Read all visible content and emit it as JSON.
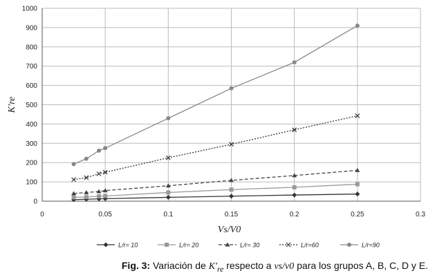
{
  "chart_data": {
    "type": "line",
    "xlabel": "Vs/V0",
    "ylabel": "K're",
    "xlim": [
      0,
      0.3
    ],
    "ylim": [
      0,
      1000
    ],
    "xticks": [
      "0",
      "0.05",
      "0.1",
      "0.15",
      "0.2",
      "0.25",
      "0.3"
    ],
    "yticks": [
      "0",
      "100",
      "200",
      "300",
      "400",
      "500",
      "600",
      "700",
      "800",
      "900",
      "1000"
    ],
    "grid": true,
    "legend_position": "bottom",
    "series": [
      {
        "name": "L/r= 10",
        "marker": "diamond",
        "color": "#333333",
        "dash": "solid",
        "x": [
          0.025,
          0.035,
          0.045,
          0.05,
          0.1,
          0.15,
          0.2,
          0.25
        ],
        "values": [
          8,
          10,
          12,
          13,
          20,
          26,
          32,
          37
        ]
      },
      {
        "name": "L/r= 20",
        "marker": "square",
        "color": "#999999",
        "dash": "solid",
        "x": [
          0.025,
          0.035,
          0.045,
          0.05,
          0.1,
          0.15,
          0.2,
          0.25
        ],
        "values": [
          20,
          22,
          25,
          27,
          45,
          60,
          72,
          88
        ]
      },
      {
        "name": "L/r= 30",
        "marker": "triangle",
        "color": "#444444",
        "dash": "dash",
        "x": [
          0.025,
          0.035,
          0.045,
          0.05,
          0.1,
          0.15,
          0.2,
          0.25
        ],
        "values": [
          40,
          45,
          50,
          55,
          80,
          108,
          133,
          160
        ]
      },
      {
        "name": "L/r=60",
        "marker": "x",
        "color": "#333333",
        "dash": "dot",
        "x": [
          0.025,
          0.035,
          0.045,
          0.05,
          0.1,
          0.15,
          0.2,
          0.25
        ],
        "values": [
          112,
          122,
          142,
          150,
          225,
          295,
          370,
          443
        ]
      },
      {
        "name": "L/r=90",
        "marker": "circle",
        "color": "#888888",
        "dash": "solid",
        "x": [
          0.025,
          0.035,
          0.045,
          0.05,
          0.1,
          0.15,
          0.2,
          0.25
        ],
        "values": [
          192,
          220,
          262,
          275,
          430,
          585,
          720,
          910
        ]
      }
    ]
  },
  "caption": {
    "fig": "Fig. 3:",
    "text_before": " Variación de ",
    "symbol": "K'",
    "symbol_sub": "re",
    "text_middle": " respecto a ",
    "ratio": "νs/ν0",
    "text_after": " para los grupos A, B, C, D y E."
  }
}
